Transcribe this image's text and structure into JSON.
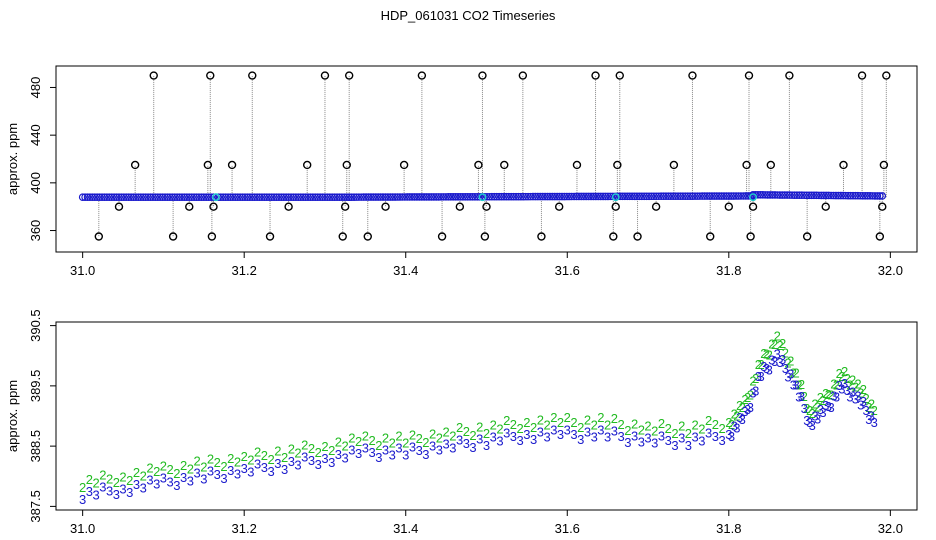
{
  "title": "HDP_061031  CO2 Timeseries",
  "chart_data": [
    {
      "type": "scatter",
      "title": "HDP_061031  CO2 Timeseries",
      "xlabel": "",
      "ylabel": "approx. ppm",
      "xlim": [
        31.0,
        32.0
      ],
      "ylim": [
        345,
        495
      ],
      "x_ticks": [
        "31.0",
        "31.2",
        "31.4",
        "31.6",
        "31.8",
        "32.0"
      ],
      "y_ticks": [
        "360",
        "400",
        "440",
        "480"
      ],
      "grid": false,
      "baseline_series": {
        "name": "",
        "segments": [
          {
            "x": [
              31.0,
              31.33
            ],
            "y": [
              388,
              388
            ]
          },
          {
            "x": [
              31.33,
              31.83
            ],
            "y": [
              388,
              389
            ]
          },
          {
            "x": [
              31.83,
              31.99
            ],
            "y": [
              390,
              389
            ]
          }
        ]
      },
      "spikes": {
        "x": [
          31.02,
          31.045,
          31.065,
          31.088,
          31.112,
          31.132,
          31.155,
          31.158,
          31.16,
          31.162,
          31.185,
          31.21,
          31.232,
          31.255,
          31.278,
          31.3,
          31.322,
          31.325,
          31.327,
          31.33,
          31.353,
          31.375,
          31.398,
          31.42,
          31.445,
          31.467,
          31.49,
          31.495,
          31.498,
          31.5,
          31.522,
          31.545,
          31.568,
          31.59,
          31.612,
          31.635,
          31.657,
          31.66,
          31.662,
          31.665,
          31.687,
          31.71,
          31.732,
          31.755,
          31.777,
          31.8,
          31.822,
          31.825,
          31.827,
          31.83,
          31.852,
          31.875,
          31.897,
          31.92,
          31.942,
          31.965,
          31.987,
          31.99,
          31.992,
          31.995
        ],
        "y": [
          355,
          380,
          415,
          490,
          355,
          380,
          415,
          490,
          355,
          380,
          415,
          490,
          355,
          380,
          415,
          490,
          355,
          380,
          415,
          490,
          355,
          380,
          415,
          490,
          355,
          380,
          415,
          490,
          355,
          380,
          415,
          490,
          355,
          380,
          415,
          490,
          355,
          380,
          415,
          490,
          355,
          380,
          415,
          490,
          355,
          380,
          415,
          490,
          355,
          380,
          415,
          490,
          355,
          380,
          415,
          490,
          355,
          380,
          415,
          490
        ]
      }
    },
    {
      "type": "scatter",
      "title": "",
      "xlabel": "",
      "ylabel": "approx. ppm",
      "xlim": [
        31.0,
        32.0
      ],
      "ylim": [
        387.5,
        390.5
      ],
      "x_ticks": [
        "31.0",
        "31.2",
        "31.4",
        "31.6",
        "31.8",
        "32.0"
      ],
      "y_ticks": [
        "387.5",
        "388.5",
        "389.5",
        "390.5"
      ],
      "grid": false,
      "series": [
        {
          "name": "",
          "marker": "2",
          "color": "#22bb22",
          "x": [
            31.0,
            31.05,
            31.1,
            31.15,
            31.2,
            31.25,
            31.3,
            31.35,
            31.4,
            31.45,
            31.5,
            31.55,
            31.6,
            31.65,
            31.7,
            31.75,
            31.8,
            31.82,
            31.84,
            31.86,
            31.88,
            31.9,
            31.92,
            31.94,
            31.96,
            31.98
          ],
          "y": [
            387.9,
            388.0,
            388.1,
            388.2,
            388.3,
            388.4,
            388.5,
            388.6,
            388.6,
            388.7,
            388.8,
            388.9,
            388.9,
            388.9,
            388.8,
            388.8,
            388.9,
            389.2,
            389.9,
            390.3,
            389.8,
            389.1,
            389.3,
            389.7,
            389.5,
            389.1
          ]
        },
        {
          "name": "",
          "marker": "3",
          "color": "#1a1acc",
          "x": [
            31.0,
            31.05,
            31.1,
            31.15,
            31.2,
            31.25,
            31.3,
            31.35,
            31.4,
            31.45,
            31.5,
            31.55,
            31.6,
            31.65,
            31.7,
            31.75,
            31.8,
            31.82,
            31.84,
            31.86,
            31.88,
            31.9,
            31.92,
            31.94,
            31.96,
            31.98
          ],
          "y": [
            387.7,
            387.8,
            387.9,
            388.0,
            388.1,
            388.2,
            388.3,
            388.4,
            388.4,
            388.5,
            388.6,
            388.7,
            388.7,
            388.7,
            388.6,
            388.6,
            388.7,
            389.0,
            389.7,
            390.0,
            389.6,
            388.9,
            389.1,
            389.5,
            389.3,
            388.9
          ]
        }
      ]
    }
  ]
}
